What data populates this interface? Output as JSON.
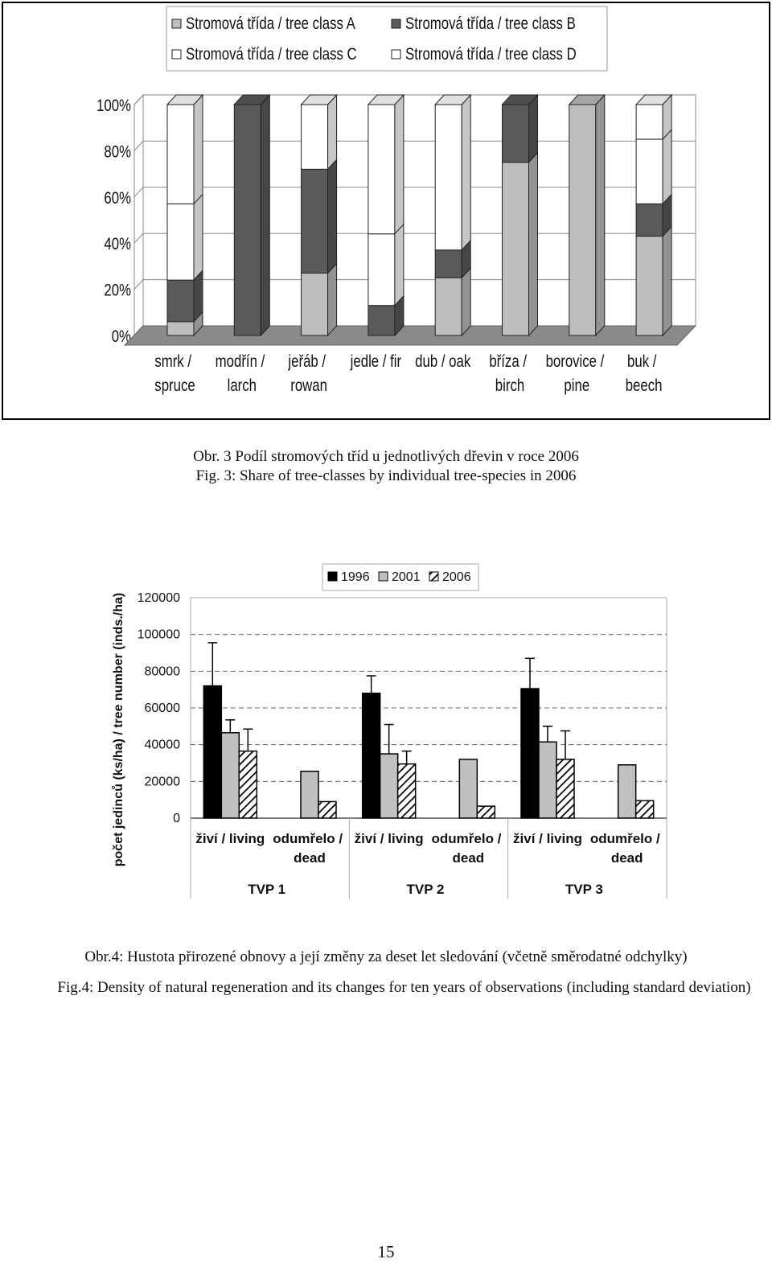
{
  "chart_data": [
    {
      "type": "bar",
      "stacked": true,
      "three_d": true,
      "categories": [
        "smrk / spruce",
        "modřín / larch",
        "jeřáb / rowan",
        "jedle / fir",
        "dub / oak",
        "bříza / birch",
        "borovice / pine",
        "buk / beech"
      ],
      "series": [
        {
          "name": "Stromová třída / tree class A",
          "color": "#bdbdbd",
          "values": [
            6,
            0,
            27,
            0,
            25,
            75,
            100,
            43
          ]
        },
        {
          "name": "Stromová třída / tree class B",
          "color": "#5a5a5a",
          "values": [
            18,
            100,
            45,
            13,
            12,
            25,
            0,
            14
          ]
        },
        {
          "name": "Stromová třída / tree class C",
          "color": "#ffffff",
          "values": [
            33,
            0,
            28,
            31,
            63,
            0,
            0,
            28
          ]
        },
        {
          "name": "Stromová třída / tree class D",
          "color": "#ffffff",
          "values": [
            43,
            0,
            0,
            56,
            0,
            0,
            0,
            15
          ]
        }
      ],
      "ylim": [
        0,
        100
      ],
      "yticks": [
        {
          "value": 0,
          "label": "0%"
        },
        {
          "value": 20,
          "label": "20%"
        },
        {
          "value": 40,
          "label": "40%"
        },
        {
          "value": 60,
          "label": "60%"
        },
        {
          "value": 80,
          "label": "80%"
        },
        {
          "value": 100,
          "label": "100%"
        }
      ],
      "grid": true,
      "legend": "top",
      "caption_cz": "Obr. 3 Podíl stromových tříd u jednotlivých dřevin v roce 2006",
      "caption_en": "Fig. 3: Share of tree-classes by individual tree-species in 2006"
    },
    {
      "type": "bar",
      "stacked": false,
      "y_label": "počet jedinců (ks/ha) / tree number (inds./ha)",
      "categories": [
        "živí / living",
        "odumřelo / dead",
        "živí / living",
        "odumřelo / dead",
        "živí / living",
        "odumřelo / dead"
      ],
      "groups": [
        "TVP 1",
        "TVP 2",
        "TVP 3"
      ],
      "series": [
        {
          "name": "1996",
          "color": "#000000",
          "values": [
            72000,
            null,
            68000,
            null,
            70500,
            null
          ],
          "errors": [
            23500,
            null,
            9500,
            null,
            16500,
            null
          ]
        },
        {
          "name": "2001",
          "color": "#c0c0c0",
          "values": [
            46500,
            25500,
            35000,
            32000,
            41500,
            29000
          ],
          "errors": [
            7000,
            null,
            16000,
            null,
            8500,
            null
          ]
        },
        {
          "name": "2006",
          "color": "#ffffff",
          "hatch": true,
          "values": [
            36500,
            9000,
            29500,
            6500,
            32000,
            9500
          ],
          "errors": [
            12000,
            null,
            7000,
            null,
            15500,
            null
          ]
        }
      ],
      "ylim": [
        0,
        120000
      ],
      "yticks": [
        0,
        20000,
        40000,
        60000,
        80000,
        100000,
        120000
      ],
      "grid": true,
      "legend": "top",
      "caption_cz": "Obr.4: Hustota přirozené obnovy a její změny za deset let sledování (včetně směrodatné odchylky)",
      "caption_en": "Fig.4: Density of natural regeneration and its changes for ten years of observations (including standard deviation)"
    }
  ],
  "page_number": "15"
}
